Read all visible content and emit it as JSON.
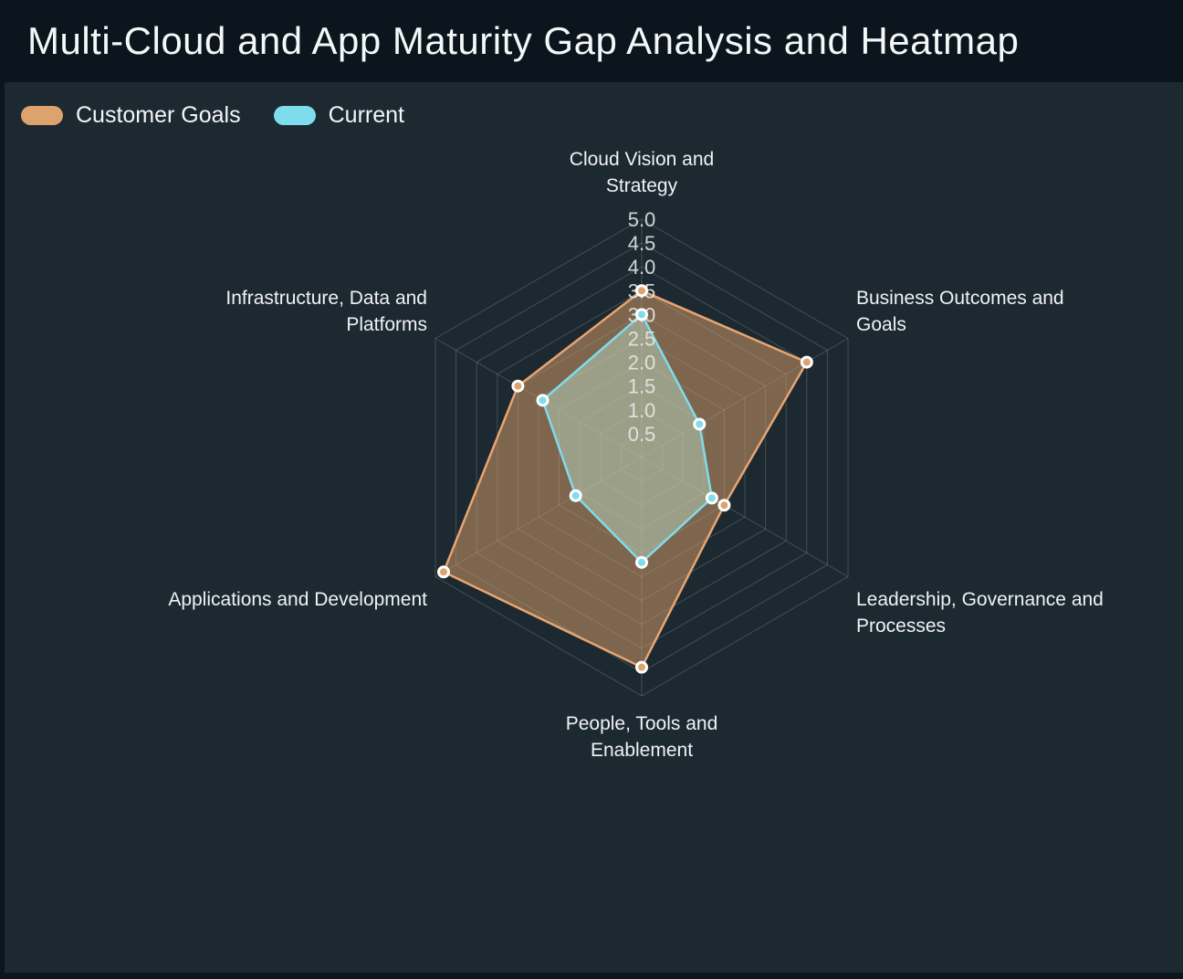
{
  "header": {
    "title": "Multi-Cloud and App Maturity Gap Analysis and Heatmap"
  },
  "legend": [
    {
      "label": "Customer Goals",
      "color": "#dda36e"
    },
    {
      "label": "Current",
      "color": "#7edcec"
    }
  ],
  "chart_data": {
    "type": "radar",
    "title": "Multi-Cloud and App Maturity Gap Analysis and Heatmap",
    "categories": [
      "Cloud Vision and Strategy",
      "Business Outcomes and Goals",
      "Leadership, Governance and Processes",
      "People, Tools and Enablement",
      "Applications and Development",
      "Infrastructure, Data and Platforms"
    ],
    "category_label_lines": [
      [
        "Cloud Vision and",
        "Strategy"
      ],
      [
        "Business Outcomes and",
        "Goals"
      ],
      [
        "Leadership, Governance and",
        "Processes"
      ],
      [
        "People, Tools and",
        "Enablement"
      ],
      [
        "Applications and Development"
      ],
      [
        "Infrastructure, Data and",
        "Platforms"
      ]
    ],
    "series": [
      {
        "name": "Customer Goals",
        "values": [
          3.5,
          4.0,
          2.0,
          4.4,
          4.8,
          3.0
        ],
        "color": "#e7a571",
        "marker_color": "#dda36e",
        "fill": "rgba(222,162,108,0.50)"
      },
      {
        "name": "Current",
        "values": [
          3.0,
          1.4,
          1.7,
          2.2,
          1.6,
          2.4
        ],
        "color": "#7edcec",
        "marker_color": "#7edcec",
        "fill": "rgba(185,212,190,0.52)"
      }
    ],
    "radial_ticks": [
      0.5,
      1.0,
      1.5,
      2.0,
      2.5,
      3.0,
      3.5,
      4.0,
      4.5,
      5.0
    ],
    "rmin": 0,
    "rmax": 5.0,
    "grid": "hexagon-rings-and-spokes",
    "legend_position": "top-left",
    "colors": {
      "page_background": "#0c151d",
      "panel_background": "#1d2931",
      "grid_line": "rgba(255,255,255,0.17)",
      "tick_text": "#e8ebe8",
      "category_text": "#eef2f4",
      "marker_ring": "#ffffff"
    }
  }
}
